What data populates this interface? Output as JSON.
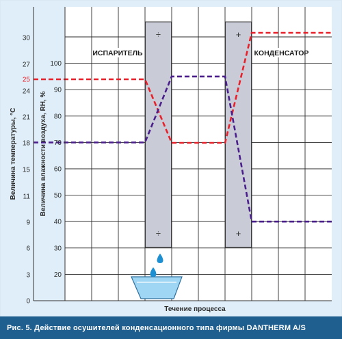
{
  "caption": "Рис. 5. Действие осушителей конденсационного типа фирмы DANTHERM A/S",
  "chart_data": {
    "type": "line",
    "xlabel": "Течение процесса",
    "y_left": {
      "label": "Величина температуры, °С",
      "ticks": [
        "0",
        "3",
        "6",
        "9",
        "11",
        "15",
        "18",
        "21",
        "24",
        "25",
        "27",
        "30"
      ],
      "highlight_tick": "25"
    },
    "y_right": {
      "label": "Величина влажности воздуха, RH, %",
      "ticks": [
        "20",
        "30",
        "40",
        "50",
        "60",
        "70",
        "80",
        "90",
        "100"
      ],
      "ylim": [
        20,
        120
      ]
    },
    "zones": [
      {
        "label": "ИСПАРИТЕЛЬ",
        "x_range": [
          0.3,
          0.4
        ],
        "top_sign": "÷",
        "bottom_sign": "÷"
      },
      {
        "label": "КОНДЕНСАТОР",
        "x_range": [
          0.6,
          0.7
        ],
        "top_sign": "+",
        "bottom_sign": "+"
      }
    ],
    "x_breakpoints": [
      0.0,
      0.3,
      0.4,
      0.6,
      0.7,
      1.0
    ],
    "series": [
      {
        "role": "temperature",
        "color": "#e8202a",
        "values": [
          25,
          25,
          18,
          18,
          31,
          31
        ]
      },
      {
        "role": "humidity",
        "color": "#4a1f8c",
        "values": [
          70,
          70,
          95,
          95,
          40,
          40
        ]
      }
    ]
  }
}
